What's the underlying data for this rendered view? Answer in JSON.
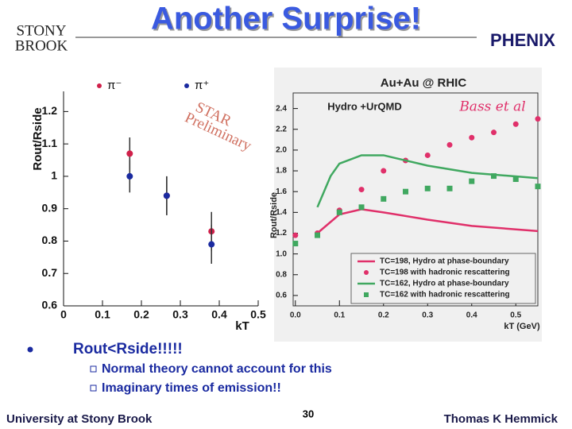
{
  "header": {
    "title": "Another Surprise!",
    "logo_left": [
      "STONY",
      "BROOK"
    ],
    "logo_right": "PHENIX"
  },
  "chart_data": [
    {
      "type": "scatter",
      "annotation": [
        "STAR",
        "Preliminary"
      ],
      "x_label": "kT",
      "y_label": "Rout/Rside",
      "xlim": [
        0,
        0.5
      ],
      "xticks": [
        0,
        0.1,
        0.2,
        0.3,
        0.4,
        0.5
      ],
      "ylim": [
        0.6,
        1.25
      ],
      "yticks": [
        0.6,
        0.7,
        0.8,
        0.9,
        1,
        1.1,
        1.2
      ],
      "legend": "top",
      "series": [
        {
          "name": "π⁻",
          "color": "#d0204a",
          "marker": "circle",
          "x": [
            0.17,
            0.265,
            0.38
          ],
          "values": [
            1.07,
            0.94,
            0.83
          ],
          "errors": [
            0.05,
            0.06,
            0.06
          ]
        },
        {
          "name": "π⁺",
          "color": "#1a2aa0",
          "marker": "circle",
          "x": [
            0.17,
            0.265,
            0.38
          ],
          "values": [
            1.0,
            0.94,
            0.79
          ],
          "errors": [
            0.05,
            0.06,
            0.06
          ]
        }
      ]
    },
    {
      "type": "scatter",
      "title": "Au+Au @ RHIC",
      "subtitle": "Hydro +UrQMD",
      "annotation": [
        "Bass et al"
      ],
      "x_label": "kT (GeV)",
      "y_label": "Rout/Rside",
      "xlim": [
        -0.005,
        0.55
      ],
      "xticks": [
        {
          "value": 0,
          "label": "0.0"
        },
        0.1,
        0.2,
        0.3,
        0.4,
        0.5
      ],
      "ylim": [
        0.5,
        2.55
      ],
      "yticks": [
        0.6,
        0.8,
        {
          "value": 1,
          "label": "1.0"
        },
        1.2,
        1.4,
        1.6,
        1.8,
        {
          "value": 2,
          "label": "2.0"
        },
        2.2,
        2.4
      ],
      "legend": "lower right",
      "series": [
        {
          "name": "TC=198, Hydro at phase-boundary",
          "color": "#e0306a",
          "marker": "line",
          "x": [
            0.05,
            0.1,
            0.15,
            0.2,
            0.3,
            0.4,
            0.55
          ],
          "values": [
            1.2,
            1.38,
            1.43,
            1.4,
            1.33,
            1.27,
            1.22
          ]
        },
        {
          "name": "TC=198 with hadronic rescattering",
          "color": "#e0306a",
          "marker": "circle",
          "x": [
            0,
            0.05,
            0.1,
            0.15,
            0.2,
            0.25,
            0.3,
            0.35,
            0.4,
            0.45,
            0.5,
            0.55
          ],
          "values": [
            1.18,
            1.2,
            1.42,
            1.62,
            1.8,
            1.9,
            1.95,
            2.05,
            2.12,
            2.17,
            2.25,
            2.3
          ]
        },
        {
          "name": "TC=162, Hydro at phase-boundary",
          "color": "#40a860",
          "marker": "line",
          "x": [
            0.05,
            0.08,
            0.1,
            0.15,
            0.2,
            0.3,
            0.4,
            0.55
          ],
          "values": [
            1.45,
            1.75,
            1.87,
            1.95,
            1.95,
            1.85,
            1.78,
            1.73
          ]
        },
        {
          "name": "TC=162 with hadronic rescattering",
          "color": "#40a860",
          "marker": "square",
          "x": [
            0,
            0.05,
            0.1,
            0.15,
            0.2,
            0.25,
            0.3,
            0.35,
            0.4,
            0.45,
            0.5,
            0.55
          ],
          "values": [
            1.1,
            1.18,
            1.4,
            1.45,
            1.53,
            1.6,
            1.63,
            1.63,
            1.7,
            1.75,
            1.72,
            1.65
          ]
        }
      ]
    }
  ],
  "bullets": {
    "main": "Rout<Rside!!!!!",
    "sub": [
      "Normal theory cannot account for this",
      "Imaginary times of emission!!"
    ]
  },
  "footer": {
    "left": "University at Stony Brook",
    "page": "30",
    "right": "Thomas K Hemmick"
  }
}
